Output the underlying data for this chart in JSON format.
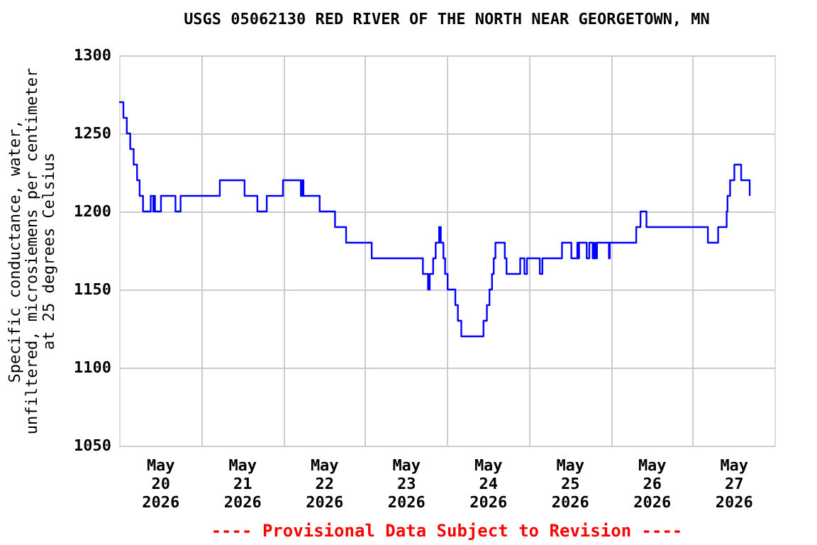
{
  "chart_data": {
    "type": "step",
    "title": "USGS 05062130 RED RIVER OF THE NORTH NEAR GEORGETOWN, MN",
    "ylabel": "Specific conductance, water,\nunfiltered, microsiemens per centimeter\nat 25 degrees Celsius",
    "annotations": [
      "---- Provisional Data Subject to Revision ----"
    ],
    "x": [
      "2026-05-20T00:00",
      "2026-05-20T01:15",
      "2026-05-20T02:15",
      "2026-05-20T03:15",
      "2026-05-20T04:15",
      "2026-05-20T05:15",
      "2026-05-20T06:00",
      "2026-05-20T07:00",
      "2026-05-20T09:15",
      "2026-05-20T10:00",
      "2026-05-20T10:15",
      "2026-05-20T10:30",
      "2026-05-20T12:15",
      "2026-05-20T16:30",
      "2026-05-20T18:00",
      "2026-05-21T05:30",
      "2026-05-21T12:45",
      "2026-05-21T16:30",
      "2026-05-21T19:15",
      "2026-05-22T00:00",
      "2026-05-22T05:15",
      "2026-05-22T05:45",
      "2026-05-22T06:00",
      "2026-05-22T10:45",
      "2026-05-22T15:15",
      "2026-05-22T18:30",
      "2026-05-23T02:00",
      "2026-05-23T17:00",
      "2026-05-23T18:30",
      "2026-05-23T19:00",
      "2026-05-23T20:00",
      "2026-05-23T20:45",
      "2026-05-23T21:45",
      "2026-05-23T22:15",
      "2026-05-23T23:00",
      "2026-05-23T23:30",
      "2026-05-24T00:15",
      "2026-05-24T02:30",
      "2026-05-24T03:15",
      "2026-05-24T04:15",
      "2026-05-24T10:45",
      "2026-05-24T11:45",
      "2026-05-24T12:30",
      "2026-05-24T13:15",
      "2026-05-24T13:45",
      "2026-05-24T14:15",
      "2026-05-24T17:00",
      "2026-05-24T17:30",
      "2026-05-24T21:30",
      "2026-05-24T22:45",
      "2026-05-24T23:30",
      "2026-05-25T03:15",
      "2026-05-25T04:00",
      "2026-05-25T09:45",
      "2026-05-25T12:30",
      "2026-05-25T14:15",
      "2026-05-25T14:30",
      "2026-05-25T14:45",
      "2026-05-25T17:00",
      "2026-05-25T17:45",
      "2026-05-25T18:45",
      "2026-05-25T19:15",
      "2026-05-25T19:30",
      "2026-05-25T20:00",
      "2026-05-25T23:30",
      "2026-05-25T23:45",
      "2026-05-26T07:30",
      "2026-05-26T08:45",
      "2026-05-26T10:30",
      "2026-05-27T04:30",
      "2026-05-27T07:30",
      "2026-05-27T10:00",
      "2026-05-27T10:15",
      "2026-05-27T11:00",
      "2026-05-27T12:15",
      "2026-05-27T14:15",
      "2026-05-27T16:45"
    ],
    "series": [
      {
        "color": "#0000ff",
        "values": [
          1270,
          1260,
          1250,
          1240,
          1230,
          1220,
          1210,
          1200,
          1210,
          1200,
          1210,
          1200,
          1210,
          1200,
          1210,
          1220,
          1210,
          1200,
          1210,
          1220,
          1210,
          1220,
          1210,
          1200,
          1190,
          1180,
          1170,
          1160,
          1150,
          1160,
          1170,
          1180,
          1190,
          1180,
          1170,
          1160,
          1150,
          1140,
          1130,
          1120,
          1130,
          1140,
          1150,
          1160,
          1170,
          1180,
          1170,
          1160,
          1170,
          1160,
          1170,
          1160,
          1170,
          1180,
          1170,
          1180,
          1170,
          1180,
          1170,
          1180,
          1170,
          1180,
          1170,
          1180,
          1170,
          1180,
          1190,
          1200,
          1190,
          1180,
          1190,
          1200,
          1210,
          1220,
          1230,
          1220,
          1210
        ]
      }
    ],
    "xlim": [
      "2026-05-20T00:00",
      "2026-05-28T00:00"
    ],
    "xticks": [
      {
        "value": "2026-05-20T12:00",
        "label": "May 20 2026"
      },
      {
        "value": "2026-05-21T00:00",
        "label": null
      },
      {
        "value": "2026-05-21T12:00",
        "label": "May 21 2026"
      },
      {
        "value": "2026-05-22T00:00",
        "label": null
      },
      {
        "value": "2026-05-22T12:00",
        "label": "May 22 2026"
      },
      {
        "value": "2026-05-23T00:00",
        "label": null
      },
      {
        "value": "2026-05-23T12:00",
        "label": "May 23 2026"
      },
      {
        "value": "2026-05-24T00:00",
        "label": null
      },
      {
        "value": "2026-05-24T12:00",
        "label": "May 24 2026"
      },
      {
        "value": "2026-05-25T00:00",
        "label": null
      },
      {
        "value": "2026-05-25T12:00",
        "label": "May 25 2026"
      },
      {
        "value": "2026-05-26T00:00",
        "label": null
      },
      {
        "value": "2026-05-26T12:00",
        "label": "May 26 2026"
      },
      {
        "value": "2026-05-27T00:00",
        "label": null
      },
      {
        "value": "2026-05-27T12:00",
        "label": "May 27 2026"
      }
    ],
    "ylim": [
      1050,
      1300
    ],
    "yticks": [
      1050,
      1100,
      1150,
      1200,
      1250,
      1300
    ],
    "grid": true
  }
}
